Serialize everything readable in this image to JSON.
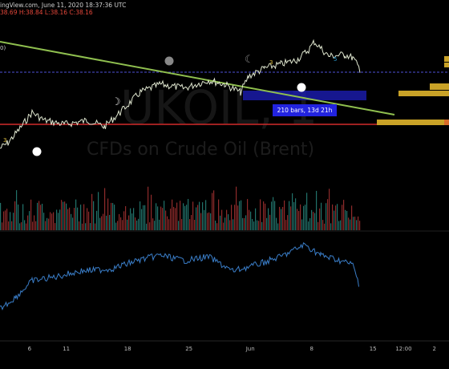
{
  "header": {
    "line1": "ingView.com, June 11, 2020 18:37:36 UTC",
    "line2": "38.69  H:38.84  L:38.16  C:38.16"
  },
  "left_marker": "0)",
  "watermark": {
    "symbol": "UKOIL, 1",
    "description": "CFDs on Crude Oil (Brent)"
  },
  "measure_label": "210 bars, 13d 21h",
  "wave_labels": [
    "3",
    "3",
    "5"
  ],
  "x_axis": {
    "ticks": [
      {
        "label": "6",
        "index": 6
      },
      {
        "label": "11",
        "index": 9
      },
      {
        "label": "18",
        "index": 14
      },
      {
        "label": "25",
        "index": 19
      },
      {
        "label": "Jun",
        "index": 24
      },
      {
        "label": "8",
        "index": 29
      },
      {
        "label": "15",
        "index": 34
      },
      {
        "label": "12:00",
        "index": 36.5
      },
      {
        "label": "2",
        "index": 39
      }
    ]
  },
  "colors": {
    "background": "#000000",
    "trendline": "#8fbf4f",
    "price_line": "#dfe6cf",
    "support_line": "#d22a2a",
    "order_blocks": "#c9a227",
    "measure_box": "#2223e0",
    "rsi_line": "#3a7ec9",
    "volume_up": "#2a8f84",
    "volume_down": "#b23636"
  }
}
